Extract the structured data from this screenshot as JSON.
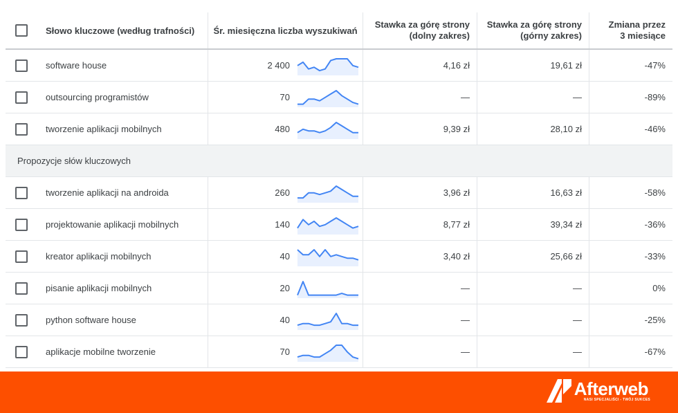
{
  "table": {
    "headers": {
      "keyword": "Słowo kluczowe (według trafności)",
      "volume": "Śr. miesięczna liczba wyszukiwań",
      "low_bid": [
        "Stawka za górę strony",
        "(dolny zakres)"
      ],
      "high_bid": [
        "Stawka za górę strony",
        "(górny zakres)"
      ],
      "change": [
        "Zmiana przez",
        "3 miesiące"
      ]
    },
    "rows": [
      {
        "keyword": "software house",
        "volume": "2 400",
        "low": "4,16 zł",
        "high": "19,61 zł",
        "change": "-47%",
        "trend": [
          5,
          7,
          3,
          4,
          2,
          3,
          8,
          9,
          9,
          9,
          5,
          4
        ]
      },
      {
        "keyword": "outsourcing programistów",
        "volume": "70",
        "low": "—",
        "high": "—",
        "change": "-89%",
        "trend": [
          1,
          1,
          4,
          4,
          3,
          5,
          7,
          9,
          6,
          4,
          2,
          1
        ]
      },
      {
        "keyword": "tworzenie aplikacji mobilnych",
        "volume": "480",
        "low": "9,39 zł",
        "high": "28,10 zł",
        "change": "-46%",
        "trend": [
          3,
          5,
          4,
          4,
          3,
          4,
          6,
          9,
          7,
          5,
          3,
          3
        ]
      },
      {
        "section": "Propozycje słów kluczowych"
      },
      {
        "keyword": "tworzenie aplikacji na androida",
        "volume": "260",
        "low": "3,96 zł",
        "high": "16,63 zł",
        "change": "-58%",
        "trend": [
          2,
          2,
          5,
          5,
          4,
          5,
          6,
          9,
          7,
          5,
          3,
          3
        ]
      },
      {
        "keyword": "projektowanie aplikacji mobilnych",
        "volume": "140",
        "low": "8,77 zł",
        "high": "39,34 zł",
        "change": "-36%",
        "trend": [
          3,
          8,
          5,
          7,
          4,
          5,
          7,
          9,
          7,
          5,
          3,
          4
        ]
      },
      {
        "keyword": "kreator aplikacji mobilnych",
        "volume": "40",
        "low": "3,40 zł",
        "high": "25,66 zł",
        "change": "-33%",
        "trend": [
          9,
          6,
          6,
          9,
          5,
          9,
          5,
          6,
          5,
          4,
          4,
          3
        ]
      },
      {
        "keyword": "pisanie aplikacji mobilnych",
        "volume": "20",
        "low": "—",
        "high": "—",
        "change": "0%",
        "trend": [
          1,
          9,
          1,
          1,
          1,
          1,
          1,
          1,
          2,
          1,
          1,
          1
        ]
      },
      {
        "keyword": "python software house",
        "volume": "40",
        "low": "—",
        "high": "—",
        "change": "-25%",
        "trend": [
          2,
          3,
          3,
          2,
          2,
          3,
          4,
          9,
          3,
          3,
          2,
          2
        ]
      },
      {
        "keyword": "aplikacje mobilne tworzenie",
        "volume": "70",
        "low": "—",
        "high": "—",
        "change": "-67%",
        "trend": [
          2,
          3,
          3,
          2,
          2,
          4,
          6,
          9,
          9,
          5,
          2,
          1
        ]
      }
    ]
  },
  "colors": {
    "sparkline": "#4285f4",
    "sparkline_fill": "#e8f0fe",
    "footer": "#fd4f00"
  },
  "footer": {
    "brand": "Afterweb",
    "tagline": "NASI SPECJALIŚCI - TWÓJ SUKCES"
  }
}
